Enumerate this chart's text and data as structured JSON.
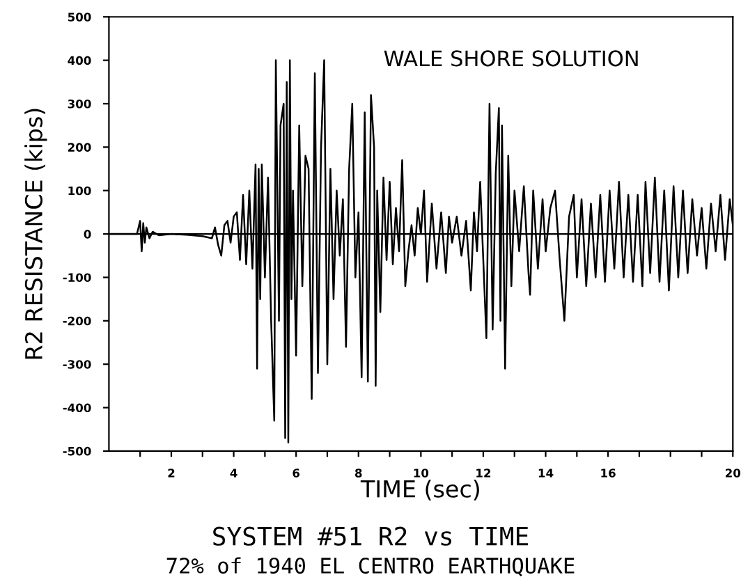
{
  "chart_data": {
    "type": "line",
    "title": "SYSTEM #51 R2 vs TIME",
    "subtitle": "72% of 1940 EL CENTRO EARTHQUAKE",
    "xlabel": "TIME (sec)",
    "ylabel": "R2 RESISTANCE (kips)",
    "annotations": [
      "WALE SHORE SOLUTION"
    ],
    "xlim": [
      0,
      20
    ],
    "ylim": [
      -500,
      500
    ],
    "xticks": [
      {
        "value": 1,
        "label": null
      },
      2,
      {
        "value": 3,
        "label": null
      },
      4,
      {
        "value": 5,
        "label": null
      },
      6,
      {
        "value": 7,
        "label": null
      },
      8,
      {
        "value": 9,
        "label": null
      },
      10,
      {
        "value": 11,
        "label": null
      },
      12,
      {
        "value": 13,
        "label": null
      },
      14,
      {
        "value": 15,
        "label": null
      },
      16,
      {
        "value": 17,
        "label": null
      },
      {
        "value": 18,
        "label": null
      },
      {
        "value": 19,
        "label": null
      },
      20
    ],
    "yticks": [
      -500,
      -400,
      -300,
      -200,
      -100,
      0,
      100,
      200,
      300,
      400,
      500
    ],
    "ref_lines": [
      {
        "axis": "y",
        "value": 0,
        "color": "#000000"
      }
    ],
    "grid": false,
    "series": [
      {
        "color": "#000000",
        "x": [
          0,
          0.9,
          1.0,
          1.05,
          1.1,
          1.15,
          1.2,
          1.3,
          1.4,
          1.6,
          2.0,
          2.5,
          3.0,
          3.3,
          3.4,
          3.5,
          3.6,
          3.7,
          3.8,
          3.9,
          4.0,
          4.1,
          4.2,
          4.3,
          4.4,
          4.5,
          4.6,
          4.7,
          4.75,
          4.8,
          4.85,
          4.9,
          5.0,
          5.1,
          5.2,
          5.3,
          5.35,
          5.45,
          5.5,
          5.6,
          5.65,
          5.7,
          5.75,
          5.8,
          5.85,
          5.9,
          6.0,
          6.1,
          6.2,
          6.3,
          6.4,
          6.5,
          6.6,
          6.7,
          6.8,
          6.9,
          7.0,
          7.1,
          7.2,
          7.3,
          7.4,
          7.5,
          7.6,
          7.7,
          7.8,
          7.9,
          8.0,
          8.1,
          8.2,
          8.3,
          8.4,
          8.5,
          8.55,
          8.6,
          8.7,
          8.8,
          8.9,
          9.0,
          9.1,
          9.2,
          9.3,
          9.4,
          9.5,
          9.6,
          9.7,
          9.8,
          9.9,
          10.0,
          10.1,
          10.2,
          10.35,
          10.5,
          10.65,
          10.8,
          10.9,
          11.0,
          11.15,
          11.3,
          11.45,
          11.6,
          11.7,
          11.8,
          11.9,
          12.0,
          12.1,
          12.2,
          12.3,
          12.4,
          12.5,
          12.55,
          12.6,
          12.7,
          12.8,
          12.9,
          13.0,
          13.15,
          13.3,
          13.45,
          13.5,
          13.6,
          13.75,
          13.9,
          14.0,
          14.15,
          14.3,
          14.45,
          14.6,
          14.75,
          14.9,
          15.0,
          15.15,
          15.3,
          15.45,
          15.6,
          15.75,
          15.9,
          16.05,
          16.2,
          16.35,
          16.5,
          16.65,
          16.8,
          16.95,
          17.1,
          17.2,
          17.35,
          17.5,
          17.65,
          17.8,
          17.95,
          18.1,
          18.25,
          18.4,
          18.55,
          18.7,
          18.85,
          19.0,
          19.15,
          19.3,
          19.45,
          19.6,
          19.75,
          19.9,
          20.0
        ],
        "values": [
          0,
          0,
          30,
          -40,
          25,
          -20,
          15,
          -10,
          5,
          -3,
          0,
          -2,
          -5,
          -10,
          15,
          -25,
          -50,
          20,
          30,
          -20,
          40,
          50,
          -60,
          90,
          -70,
          100,
          -80,
          160,
          -310,
          150,
          -150,
          160,
          -100,
          130,
          -200,
          -430,
          400,
          -200,
          250,
          300,
          -470,
          350,
          -480,
          400,
          -150,
          100,
          -280,
          250,
          -120,
          180,
          150,
          -380,
          370,
          -320,
          200,
          400,
          -300,
          150,
          -150,
          100,
          -50,
          80,
          -260,
          150,
          300,
          -100,
          50,
          -330,
          280,
          -340,
          320,
          200,
          -350,
          100,
          -180,
          130,
          -60,
          120,
          -70,
          60,
          -40,
          170,
          -120,
          -40,
          20,
          -50,
          60,
          0,
          100,
          -110,
          70,
          -80,
          50,
          -90,
          40,
          -20,
          40,
          -50,
          30,
          -130,
          50,
          -40,
          120,
          -60,
          -240,
          300,
          -220,
          140,
          290,
          -200,
          250,
          -310,
          180,
          -120,
          100,
          -40,
          110,
          -90,
          -140,
          100,
          -80,
          80,
          -40,
          60,
          100,
          -60,
          -200,
          40,
          90,
          -100,
          80,
          -120,
          70,
          -100,
          90,
          -110,
          100,
          -80,
          120,
          -100,
          90,
          -110,
          90,
          -120,
          120,
          -90,
          130,
          -110,
          100,
          -130,
          110,
          -100,
          100,
          -90,
          80,
          -50,
          60,
          -80,
          70,
          -40,
          90,
          -60,
          80,
          20
        ]
      }
    ]
  }
}
